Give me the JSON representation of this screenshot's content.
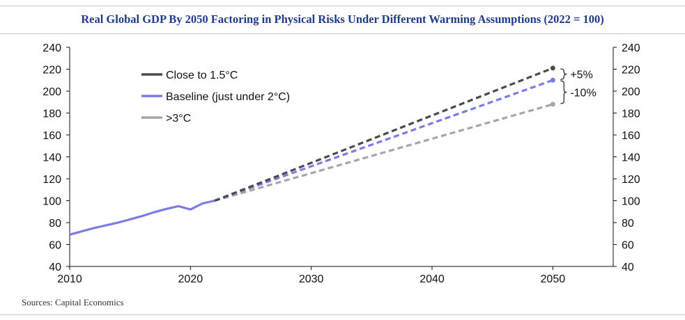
{
  "title": "Real Global GDP By 2050 Factoring in Physical Risks Under Different Warming Assumptions (2022 = 100)",
  "source": "Sources: Capital Economics",
  "chart_data": {
    "type": "line",
    "title": "Real Global GDP By 2050 Factoring in Physical Risks Under Different Warming Assumptions (2022 = 100)",
    "xlabel": "",
    "ylabel": "",
    "xlim": [
      2010,
      2055
    ],
    "ylim": [
      40,
      240
    ],
    "x_ticks": [
      2010,
      2020,
      2030,
      2040,
      2050
    ],
    "y_ticks": [
      40,
      60,
      80,
      100,
      120,
      140,
      160,
      180,
      200,
      220,
      240
    ],
    "grid": false,
    "legend_position": "top-left",
    "historical": {
      "series": "Baseline (just under 2°C)",
      "x": [
        2010,
        2011,
        2012,
        2013,
        2014,
        2015,
        2016,
        2017,
        2018,
        2019,
        2020,
        2021,
        2022
      ],
      "y": [
        69,
        72,
        75,
        77.5,
        80,
        83,
        86,
        89.5,
        92.5,
        95,
        92,
        97.5,
        100
      ]
    },
    "series": [
      {
        "name": "Close to 1.5°C",
        "color": "#4a4a4a",
        "x": [
          2022,
          2050
        ],
        "y": [
          100,
          221
        ]
      },
      {
        "name": "Baseline (just under 2°C)",
        "color": "#7b7be8",
        "x": [
          2022,
          2050
        ],
        "y": [
          100,
          210
        ]
      },
      {
        "name": ">3°C",
        "color": "#a6a6a6",
        "x": [
          2022,
          2050
        ],
        "y": [
          100,
          188
        ]
      }
    ],
    "annotations": [
      {
        "text": "+5%",
        "x": 2050,
        "y_range": [
          210,
          221
        ]
      },
      {
        "text": "-10%",
        "x": 2050,
        "y_range": [
          188,
          210
        ]
      }
    ]
  }
}
